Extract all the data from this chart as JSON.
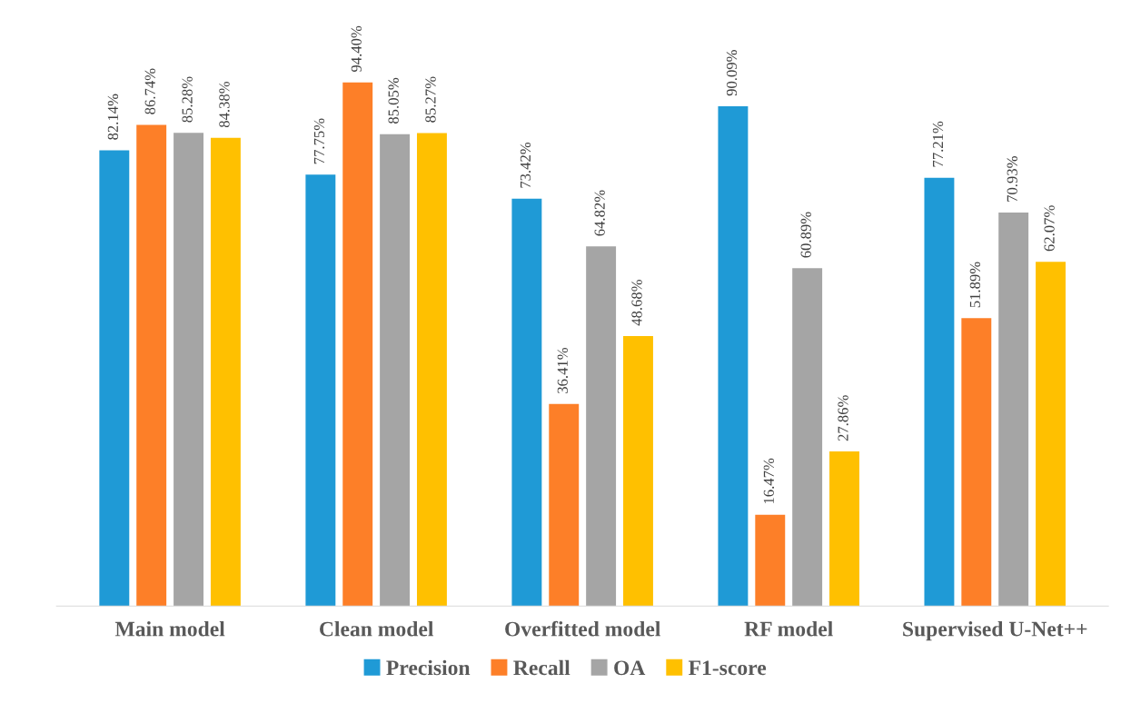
{
  "chart_data": {
    "type": "bar",
    "categories": [
      "Main model",
      "Clean model",
      "Overfitted model",
      "RF model",
      "Supervised U-Net++"
    ],
    "series": [
      {
        "name": "Precision",
        "color": "#1f9ad6",
        "values": [
          82.14,
          77.75,
          73.42,
          90.09,
          77.21
        ],
        "value_labels": [
          "82.14%",
          "77.75%",
          "73.42%",
          "90.09%",
          "77.21%"
        ]
      },
      {
        "name": "Recall",
        "color": "#fd7f28",
        "values": [
          86.74,
          94.4,
          36.41,
          16.47,
          51.89
        ],
        "value_labels": [
          "86.74%",
          "94.40%",
          "36.41%",
          "16.47%",
          "51.89%"
        ]
      },
      {
        "name": "OA",
        "color": "#a5a5a5",
        "values": [
          85.28,
          85.05,
          64.82,
          60.89,
          70.93
        ],
        "value_labels": [
          "85.28%",
          "85.05%",
          "64.82%",
          "60.89%",
          "70.93%"
        ]
      },
      {
        "name": "F1-score",
        "color": "#ffc000",
        "values": [
          84.38,
          85.27,
          48.68,
          27.86,
          62.07
        ],
        "value_labels": [
          "84.38%",
          "85.27%",
          "48.68%",
          "27.86%",
          "62.07%"
        ]
      }
    ],
    "legend": "bottom"
  }
}
